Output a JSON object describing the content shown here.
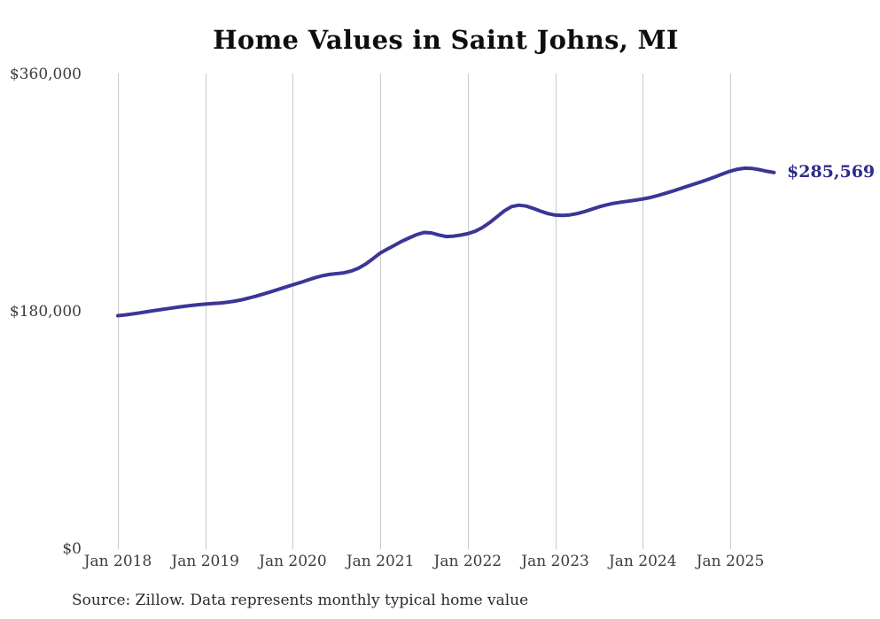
{
  "chart_data": {
    "type": "line",
    "title": "Home Values in Saint Johns, MI",
    "series_name": "Monthly typical home value",
    "x_tick_labels": [
      "Jan 2018",
      "Jan 2019",
      "Jan 2020",
      "Jan 2021",
      "Jan 2022",
      "Jan 2023",
      "Jan 2024",
      "Jan 2025"
    ],
    "y_tick_labels": [
      "$0",
      "$180,000",
      "$360,000"
    ],
    "ylim": [
      0,
      360000
    ],
    "grid": "vertical-only",
    "legend": "none",
    "line_color": "#3b3696",
    "end_label": "$285,569",
    "last_value": 285569,
    "months": [
      "Jan 2018",
      "Feb 2018",
      "Mar 2018",
      "Apr 2018",
      "May 2018",
      "Jun 2018",
      "Jul 2018",
      "Aug 2018",
      "Sep 2018",
      "Oct 2018",
      "Nov 2018",
      "Dec 2018",
      "Jan 2019",
      "Feb 2019",
      "Mar 2019",
      "Apr 2019",
      "May 2019",
      "Jun 2019",
      "Jul 2019",
      "Aug 2019",
      "Sep 2019",
      "Oct 2019",
      "Nov 2019",
      "Dec 2019",
      "Jan 2020",
      "Feb 2020",
      "Mar 2020",
      "Apr 2020",
      "May 2020",
      "Jun 2020",
      "Jul 2020",
      "Aug 2020",
      "Sep 2020",
      "Oct 2020",
      "Nov 2020",
      "Dec 2020",
      "Jan 2021",
      "Feb 2021",
      "Mar 2021",
      "Apr 2021",
      "May 2021",
      "Jun 2021",
      "Jul 2021",
      "Aug 2021",
      "Sep 2021",
      "Oct 2021",
      "Nov 2021",
      "Dec 2021",
      "Jan 2022",
      "Feb 2022",
      "Mar 2022",
      "Apr 2022",
      "May 2022",
      "Jun 2022",
      "Jul 2022",
      "Aug 2022",
      "Sep 2022",
      "Oct 2022",
      "Nov 2022",
      "Dec 2022",
      "Jan 2023",
      "Feb 2023",
      "Mar 2023",
      "Apr 2023",
      "May 2023",
      "Jun 2023",
      "Jul 2023",
      "Aug 2023",
      "Sep 2023",
      "Oct 2023",
      "Nov 2023",
      "Dec 2023",
      "Jan 2024",
      "Feb 2024",
      "Mar 2024",
      "Apr 2024",
      "May 2024",
      "Jun 2024",
      "Jul 2024",
      "Aug 2024",
      "Sep 2024",
      "Oct 2024",
      "Nov 2024",
      "Dec 2024",
      "Jan 2025",
      "Feb 2025",
      "Mar 2025",
      "Apr 2025",
      "May 2025",
      "Jun 2025",
      "Jul 2025"
    ],
    "values": [
      177000,
      177600,
      178300,
      179100,
      180000,
      180900,
      181700,
      182500,
      183300,
      184000,
      184700,
      185300,
      185800,
      186200,
      186600,
      187200,
      188000,
      189100,
      190400,
      191900,
      193500,
      195200,
      196900,
      198700,
      200400,
      202100,
      203900,
      205700,
      207200,
      208300,
      208900,
      209500,
      210800,
      213000,
      216200,
      220200,
      224500,
      227600,
      230600,
      233500,
      236100,
      238500,
      240100,
      239800,
      238200,
      237000,
      237300,
      238100,
      239200,
      241000,
      243800,
      247600,
      252000,
      256400,
      259700,
      260800,
      260100,
      258300,
      256200,
      254400,
      253300,
      253000,
      253400,
      254400,
      255900,
      257700,
      259500,
      261000,
      262200,
      263100,
      263800,
      264600,
      265500,
      266600,
      268000,
      269600,
      271300,
      273100,
      274900,
      276700,
      278500,
      280400,
      282400,
      284600,
      286600,
      288100,
      288900,
      288700,
      287700,
      286500,
      285569
    ],
    "source": "Source: Zillow. Data represents monthly typical home value"
  }
}
